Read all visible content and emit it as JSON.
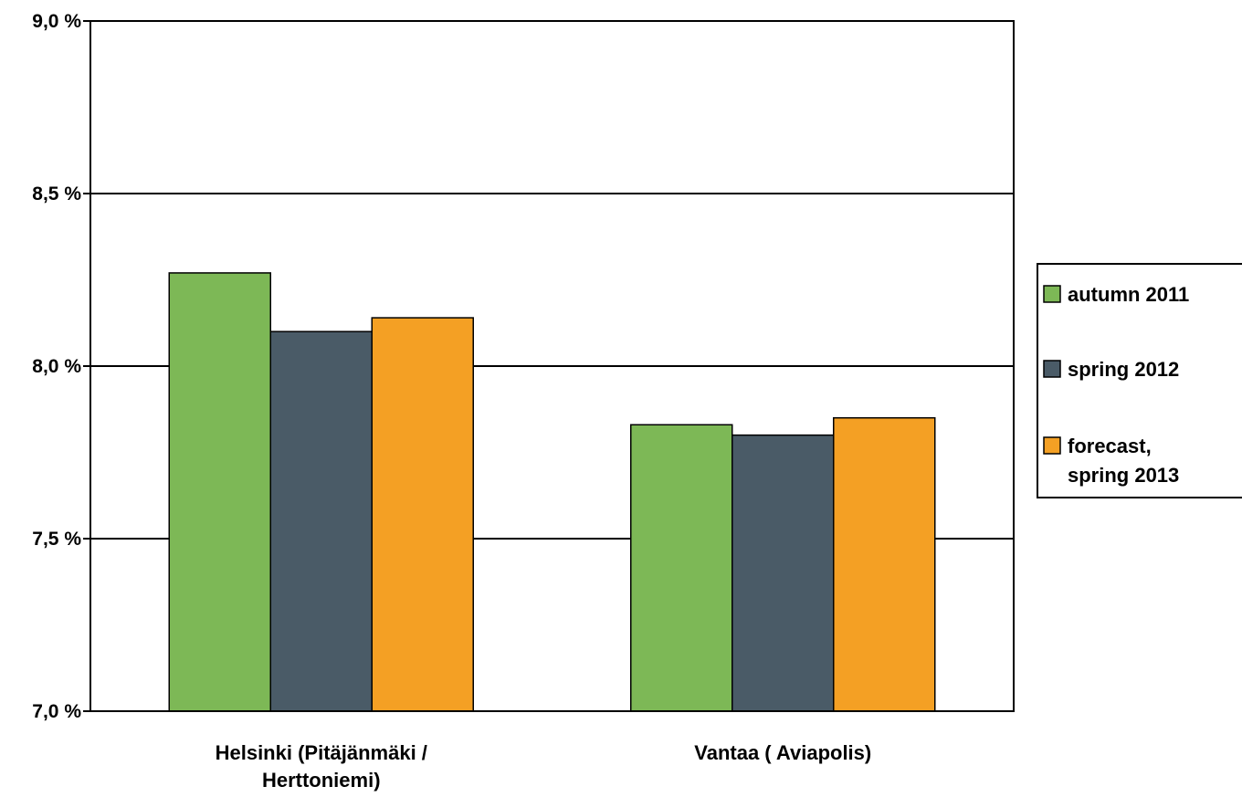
{
  "chart_data": {
    "type": "bar",
    "categories": [
      "Helsinki (Pitäjänmäki / Herttoniemi)",
      "Vantaa ( Aviapolis)"
    ],
    "category_lines": [
      [
        "Helsinki (Pitäjänmäki /",
        "Herttoniemi)"
      ],
      [
        "Vantaa ( Aviapolis)"
      ]
    ],
    "series": [
      {
        "name": "autumn 2011",
        "name_lines": [
          "autumn 2011"
        ],
        "values": [
          8.27,
          7.83
        ],
        "color": "#7db856"
      },
      {
        "name": "spring 2012",
        "name_lines": [
          "spring 2012"
        ],
        "values": [
          8.1,
          7.8
        ],
        "color": "#4a5b67"
      },
      {
        "name": "forecast, spring 2013",
        "name_lines": [
          "forecast,",
          "spring 2013"
        ],
        "values": [
          8.14,
          7.85
        ],
        "color": "#f4a024"
      }
    ],
    "title": "",
    "xlabel": "",
    "ylabel": "",
    "ylim": [
      7.0,
      9.0
    ],
    "yticks": [
      {
        "value": 7.0,
        "label": "7,0 %"
      },
      {
        "value": 7.5,
        "label": "7,5 %"
      },
      {
        "value": 8.0,
        "label": "8,0 %"
      },
      {
        "value": 8.5,
        "label": "8,5 %"
      },
      {
        "value": 9.0,
        "label": "9,0 %"
      }
    ],
    "grid": true,
    "legend": "right"
  }
}
